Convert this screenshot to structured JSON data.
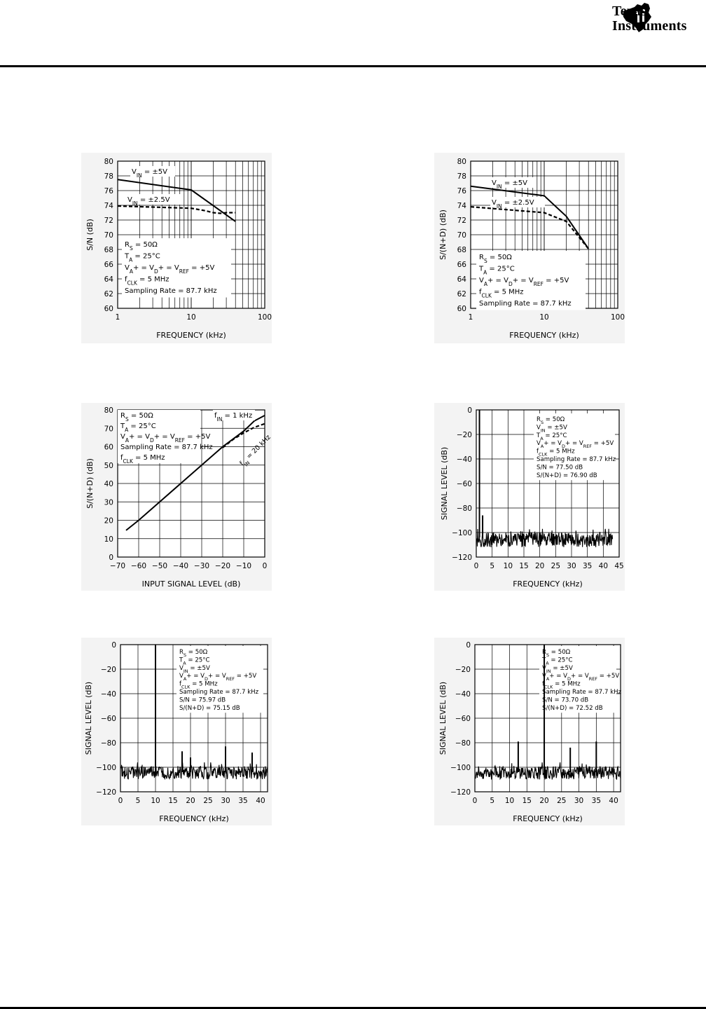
{
  "header": {
    "logo_line1": "Texas",
    "logo_line2": "Instruments"
  },
  "chart_data": [
    {
      "id": "c1",
      "type": "line",
      "xlabel": "FREQUENCY (kHz)",
      "ylabel": "S/N (dB)",
      "xscale": "log",
      "xlim": [
        1,
        100
      ],
      "ylim": [
        60,
        80
      ],
      "xticks": [
        1,
        10,
        100
      ],
      "yticks": [
        60,
        62,
        64,
        66,
        68,
        70,
        72,
        74,
        76,
        78,
        80
      ],
      "grid": true,
      "series": [
        {
          "name": "VIN = ±5V",
          "style": "solid",
          "x": [
            1,
            10,
            40
          ],
          "y": [
            77.5,
            76.1,
            71.8
          ]
        },
        {
          "name": "VIN = ±2.5V",
          "style": "dashed",
          "x": [
            1,
            10,
            15,
            20,
            25,
            30,
            40
          ],
          "y": [
            73.9,
            73.6,
            73.3,
            73.0,
            72.9,
            73.0,
            73.0
          ]
        }
      ],
      "conditions": [
        "RS = 50Ω",
        "TA = 25°C",
        "VA+ = VD+ = VREF = +5V",
        "fCLK = 5 MHz",
        "Sampling Rate = 87.7 kHz"
      ]
    },
    {
      "id": "c2",
      "type": "line",
      "xlabel": "FREQUENCY (kHz)",
      "ylabel": "S/(N+D) (dB)",
      "xscale": "log",
      "xlim": [
        1,
        100
      ],
      "ylim": [
        60,
        80
      ],
      "xticks": [
        1,
        10,
        100
      ],
      "yticks": [
        60,
        62,
        64,
        66,
        68,
        70,
        72,
        74,
        76,
        78,
        80
      ],
      "grid": true,
      "series": [
        {
          "name": "VIN = ±5V",
          "style": "solid",
          "x": [
            1,
            10,
            20,
            40
          ],
          "y": [
            76.6,
            75.3,
            72.5,
            68.1
          ]
        },
        {
          "name": "VIN = ±2.5V",
          "style": "dashed",
          "x": [
            1,
            10,
            20,
            40
          ],
          "y": [
            73.8,
            73.0,
            71.8,
            68.1
          ]
        }
      ],
      "conditions": [
        "RS = 50Ω",
        "TA = 25°C",
        "VA+ = VD+ = VREF = +5V",
        "fCLK = 5 MHz",
        "Sampling Rate = 87.7 kHz"
      ]
    },
    {
      "id": "c3",
      "type": "line",
      "xlabel": "INPUT SIGNAL LEVEL (dB)",
      "ylabel": "S/(N+D) (dB)",
      "xlim": [
        -70,
        0
      ],
      "ylim": [
        0,
        80
      ],
      "xticks": [
        -70,
        -60,
        -50,
        -40,
        -30,
        -20,
        -10,
        0
      ],
      "xtick_labels": [
        "−70",
        "−60",
        "−50",
        "−40",
        "−30",
        "−20",
        "−10",
        "0"
      ],
      "yticks": [
        0,
        10,
        20,
        30,
        40,
        50,
        60,
        70,
        80
      ],
      "grid": true,
      "series": [
        {
          "name": "fIN = 1 kHz",
          "style": "solid",
          "x": [
            -66,
            -60,
            -50,
            -40,
            -30,
            -20,
            -10,
            -5,
            0
          ],
          "y": [
            14.5,
            20,
            30,
            40,
            50,
            60,
            68.5,
            74,
            77
          ]
        },
        {
          "name": "fIN = 20 kHz",
          "style": "dashed",
          "x": [
            -20,
            -15,
            -10,
            -5,
            0
          ],
          "y": [
            59.5,
            64,
            67.5,
            70.5,
            72.5
          ]
        }
      ],
      "conditions": [
        "RS = 50Ω",
        "TA = 25°C",
        "VA+ = VD+ = VREF = +5V",
        "Sampling Rate = 87.7 kHz",
        "fCLK = 5 MHz"
      ]
    },
    {
      "id": "c4",
      "type": "line",
      "xlabel": "FREQUENCY (kHz)",
      "ylabel": "SIGNAL LEVEL (dB)",
      "xlim": [
        0,
        45
      ],
      "ylim": [
        -120,
        0
      ],
      "xticks": [
        0,
        5,
        10,
        15,
        20,
        25,
        30,
        35,
        40,
        45
      ],
      "yticks": [
        -120,
        -100,
        -80,
        -60,
        -40,
        -20,
        0
      ],
      "ytick_labels": [
        "−120",
        "−100",
        "−80",
        "−60",
        "−40",
        "−20",
        "0"
      ],
      "grid": true,
      "noise_floor": [
        -100,
        -112
      ],
      "spectrum_end": 43,
      "peaks": [
        {
          "x": 1,
          "y": 0
        },
        {
          "x": 2,
          "y": -86
        }
      ],
      "conditions": [
        "RS = 50Ω",
        "VIN = ±5V",
        "TA = 25°C",
        "VA+ = VD+ = VREF = +5V",
        "fCLK = 5 MHz",
        "Sampling Rate = 87.7 kHz",
        "S/N = 77.50 dB",
        "S/(N+D) = 76.90 dB"
      ]
    },
    {
      "id": "c5",
      "type": "line",
      "xlabel": "FREQUENCY (kHz)",
      "ylabel": "SIGNAL LEVEL (dB)",
      "xlim": [
        0,
        42
      ],
      "ylim": [
        -120,
        0
      ],
      "xticks": [
        0,
        5,
        10,
        15,
        20,
        25,
        30,
        35,
        40
      ],
      "yticks": [
        -120,
        -100,
        -80,
        -60,
        -40,
        -20,
        0
      ],
      "ytick_labels": [
        "−120",
        "−100",
        "−80",
        "−60",
        "−40",
        "−20",
        "0"
      ],
      "grid": true,
      "noise_floor": [
        -99,
        -110
      ],
      "spectrum_end": 42,
      "peaks": [
        {
          "x": 10,
          "y": 0
        },
        {
          "x": 17.6,
          "y": -87
        },
        {
          "x": 20,
          "y": -92
        },
        {
          "x": 30,
          "y": -83
        },
        {
          "x": 37.6,
          "y": -88
        }
      ],
      "conditions": [
        "RS = 50Ω",
        "TA = 25°C",
        "VIN = ±5V",
        "VA+ = VD+ = VREF = +5V",
        "fCLK = 5 MHz",
        "Sampling Rate = 87.7 kHz",
        "S/N = 75.97 dB",
        "S/(N+D) = 75.15 dB"
      ]
    },
    {
      "id": "c6",
      "type": "line",
      "xlabel": "FREQUENCY (kHz)",
      "ylabel": "SIGNAL LEVEL (dB)",
      "xlim": [
        0,
        42
      ],
      "ylim": [
        -120,
        0
      ],
      "xticks": [
        0,
        5,
        10,
        15,
        20,
        25,
        30,
        35,
        40
      ],
      "yticks": [
        -120,
        -100,
        -80,
        -60,
        -40,
        -20,
        0
      ],
      "ytick_labels": [
        "−120",
        "−100",
        "−80",
        "−60",
        "−40",
        "−20",
        "0"
      ],
      "grid": true,
      "noise_floor": [
        -99,
        -110
      ],
      "spectrum_end": 42,
      "peaks": [
        {
          "x": 20,
          "y": 0
        },
        {
          "x": 12.5,
          "y": -79
        },
        {
          "x": 27.5,
          "y": -84
        },
        {
          "x": 35,
          "y": -79
        }
      ],
      "conditions": [
        "RS = 50Ω",
        "TA = 25°C",
        "VIN = ±5V",
        "VA+ = VD+ = VREF = +5V",
        "fCLK = 5 MHz",
        "Sampling Rate = 87.7 kHz",
        "S/N = 73.70 dB",
        "S/(N+D) = 72.52 dB"
      ]
    }
  ]
}
